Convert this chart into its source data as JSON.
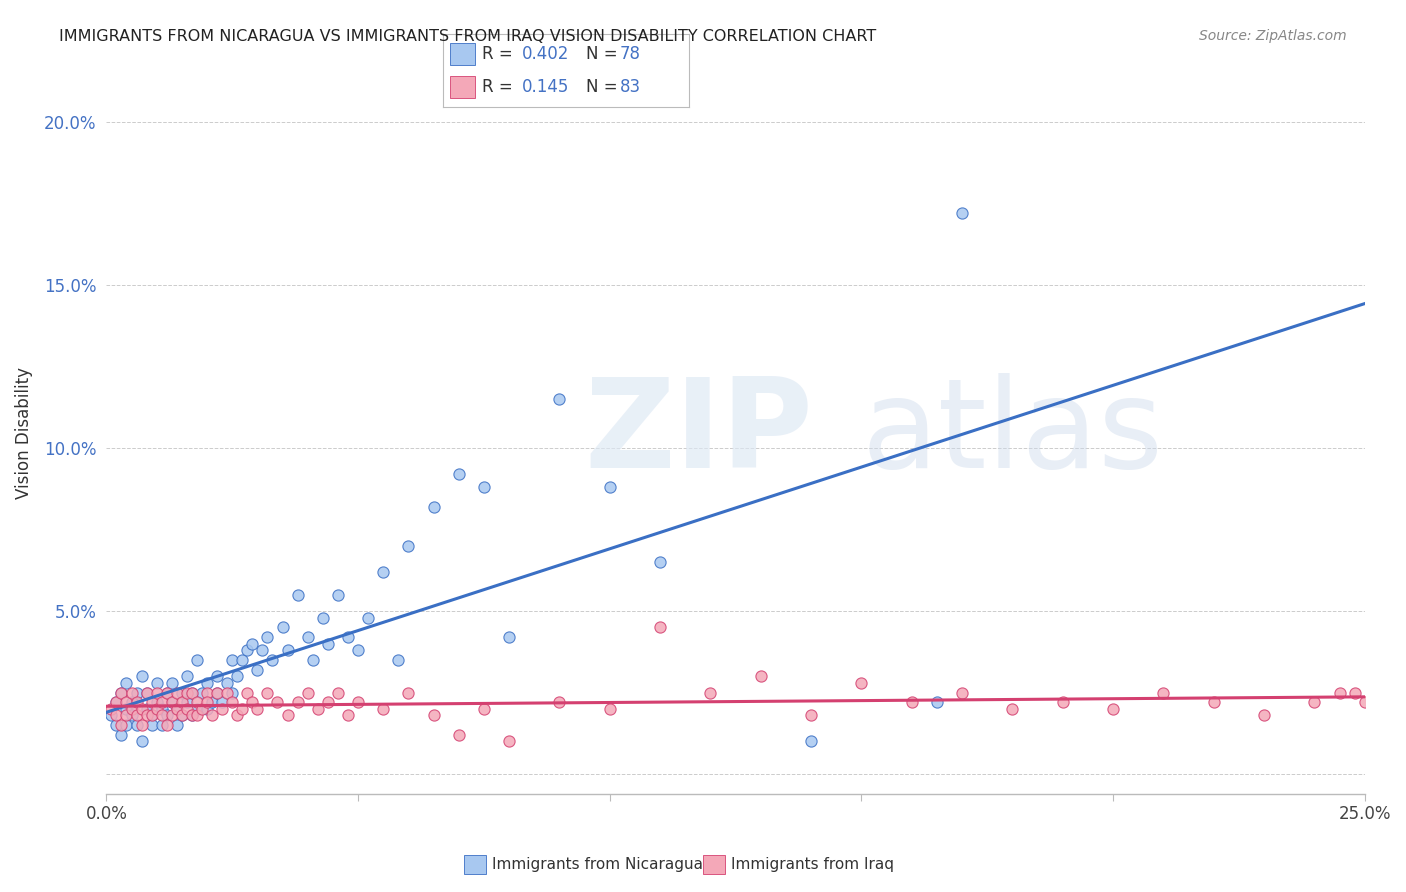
{
  "title": "IMMIGRANTS FROM NICARAGUA VS IMMIGRANTS FROM IRAQ VISION DISABILITY CORRELATION CHART",
  "source": "Source: ZipAtlas.com",
  "ylabel": "Vision Disability",
  "xlim": [
    0.0,
    0.25
  ],
  "ylim": [
    -0.006,
    0.215
  ],
  "bottom_label1": "Immigrants from Nicaragua",
  "bottom_label2": "Immigrants from Iraq",
  "nic_color": "#a8c8f0",
  "nic_edge": "#3a6fc4",
  "iraq_color": "#f4a8b8",
  "iraq_edge": "#d44070",
  "nic_line_color": "#3a6fc4",
  "iraq_line_color": "#d44070",
  "text_blue": "#4472c4",
  "background_color": "#ffffff",
  "grid_color": "#cccccc",
  "nicaragua_R": 0.402,
  "nicaragua_N": 78,
  "iraq_R": 0.145,
  "iraq_N": 83,
  "nic_x": [
    0.001,
    0.002,
    0.002,
    0.003,
    0.003,
    0.004,
    0.004,
    0.004,
    0.005,
    0.005,
    0.006,
    0.006,
    0.007,
    0.007,
    0.008,
    0.008,
    0.009,
    0.009,
    0.01,
    0.01,
    0.011,
    0.011,
    0.012,
    0.012,
    0.013,
    0.013,
    0.014,
    0.014,
    0.015,
    0.015,
    0.016,
    0.016,
    0.017,
    0.017,
    0.018,
    0.018,
    0.019,
    0.02,
    0.02,
    0.021,
    0.022,
    0.022,
    0.023,
    0.024,
    0.025,
    0.025,
    0.026,
    0.027,
    0.028,
    0.029,
    0.03,
    0.031,
    0.032,
    0.033,
    0.035,
    0.036,
    0.038,
    0.04,
    0.041,
    0.043,
    0.044,
    0.046,
    0.048,
    0.05,
    0.052,
    0.055,
    0.058,
    0.06,
    0.065,
    0.07,
    0.075,
    0.08,
    0.09,
    0.1,
    0.11,
    0.14,
    0.165,
    0.17
  ],
  "nic_y": [
    0.018,
    0.022,
    0.015,
    0.025,
    0.012,
    0.02,
    0.028,
    0.015,
    0.022,
    0.018,
    0.025,
    0.015,
    0.03,
    0.01,
    0.02,
    0.025,
    0.018,
    0.015,
    0.022,
    0.028,
    0.02,
    0.015,
    0.025,
    0.018,
    0.022,
    0.028,
    0.02,
    0.015,
    0.025,
    0.018,
    0.03,
    0.022,
    0.025,
    0.018,
    0.035,
    0.02,
    0.025,
    0.028,
    0.02,
    0.022,
    0.03,
    0.025,
    0.022,
    0.028,
    0.025,
    0.035,
    0.03,
    0.035,
    0.038,
    0.04,
    0.032,
    0.038,
    0.042,
    0.035,
    0.045,
    0.038,
    0.055,
    0.042,
    0.035,
    0.048,
    0.04,
    0.055,
    0.042,
    0.038,
    0.048,
    0.062,
    0.035,
    0.07,
    0.082,
    0.092,
    0.088,
    0.042,
    0.115,
    0.088,
    0.065,
    0.01,
    0.022,
    0.172
  ],
  "iraq_x": [
    0.001,
    0.002,
    0.002,
    0.003,
    0.003,
    0.004,
    0.004,
    0.005,
    0.005,
    0.006,
    0.006,
    0.007,
    0.007,
    0.008,
    0.008,
    0.009,
    0.009,
    0.01,
    0.01,
    0.011,
    0.011,
    0.012,
    0.012,
    0.013,
    0.013,
    0.014,
    0.014,
    0.015,
    0.015,
    0.016,
    0.016,
    0.017,
    0.017,
    0.018,
    0.018,
    0.019,
    0.02,
    0.02,
    0.021,
    0.022,
    0.023,
    0.024,
    0.025,
    0.026,
    0.027,
    0.028,
    0.029,
    0.03,
    0.032,
    0.034,
    0.036,
    0.038,
    0.04,
    0.042,
    0.044,
    0.046,
    0.048,
    0.05,
    0.055,
    0.06,
    0.065,
    0.07,
    0.075,
    0.08,
    0.09,
    0.1,
    0.11,
    0.12,
    0.13,
    0.14,
    0.15,
    0.16,
    0.17,
    0.18,
    0.19,
    0.2,
    0.21,
    0.22,
    0.23,
    0.24,
    0.245,
    0.248,
    0.25
  ],
  "iraq_y": [
    0.02,
    0.018,
    0.022,
    0.015,
    0.025,
    0.018,
    0.022,
    0.02,
    0.025,
    0.018,
    0.022,
    0.015,
    0.02,
    0.025,
    0.018,
    0.022,
    0.018,
    0.02,
    0.025,
    0.018,
    0.022,
    0.015,
    0.025,
    0.018,
    0.022,
    0.02,
    0.025,
    0.018,
    0.022,
    0.025,
    0.02,
    0.018,
    0.025,
    0.022,
    0.018,
    0.02,
    0.025,
    0.022,
    0.018,
    0.025,
    0.02,
    0.025,
    0.022,
    0.018,
    0.02,
    0.025,
    0.022,
    0.02,
    0.025,
    0.022,
    0.018,
    0.022,
    0.025,
    0.02,
    0.022,
    0.025,
    0.018,
    0.022,
    0.02,
    0.025,
    0.018,
    0.012,
    0.02,
    0.01,
    0.022,
    0.02,
    0.045,
    0.025,
    0.03,
    0.018,
    0.028,
    0.022,
    0.025,
    0.02,
    0.022,
    0.02,
    0.025,
    0.022,
    0.018,
    0.022,
    0.025,
    0.025,
    0.022
  ]
}
